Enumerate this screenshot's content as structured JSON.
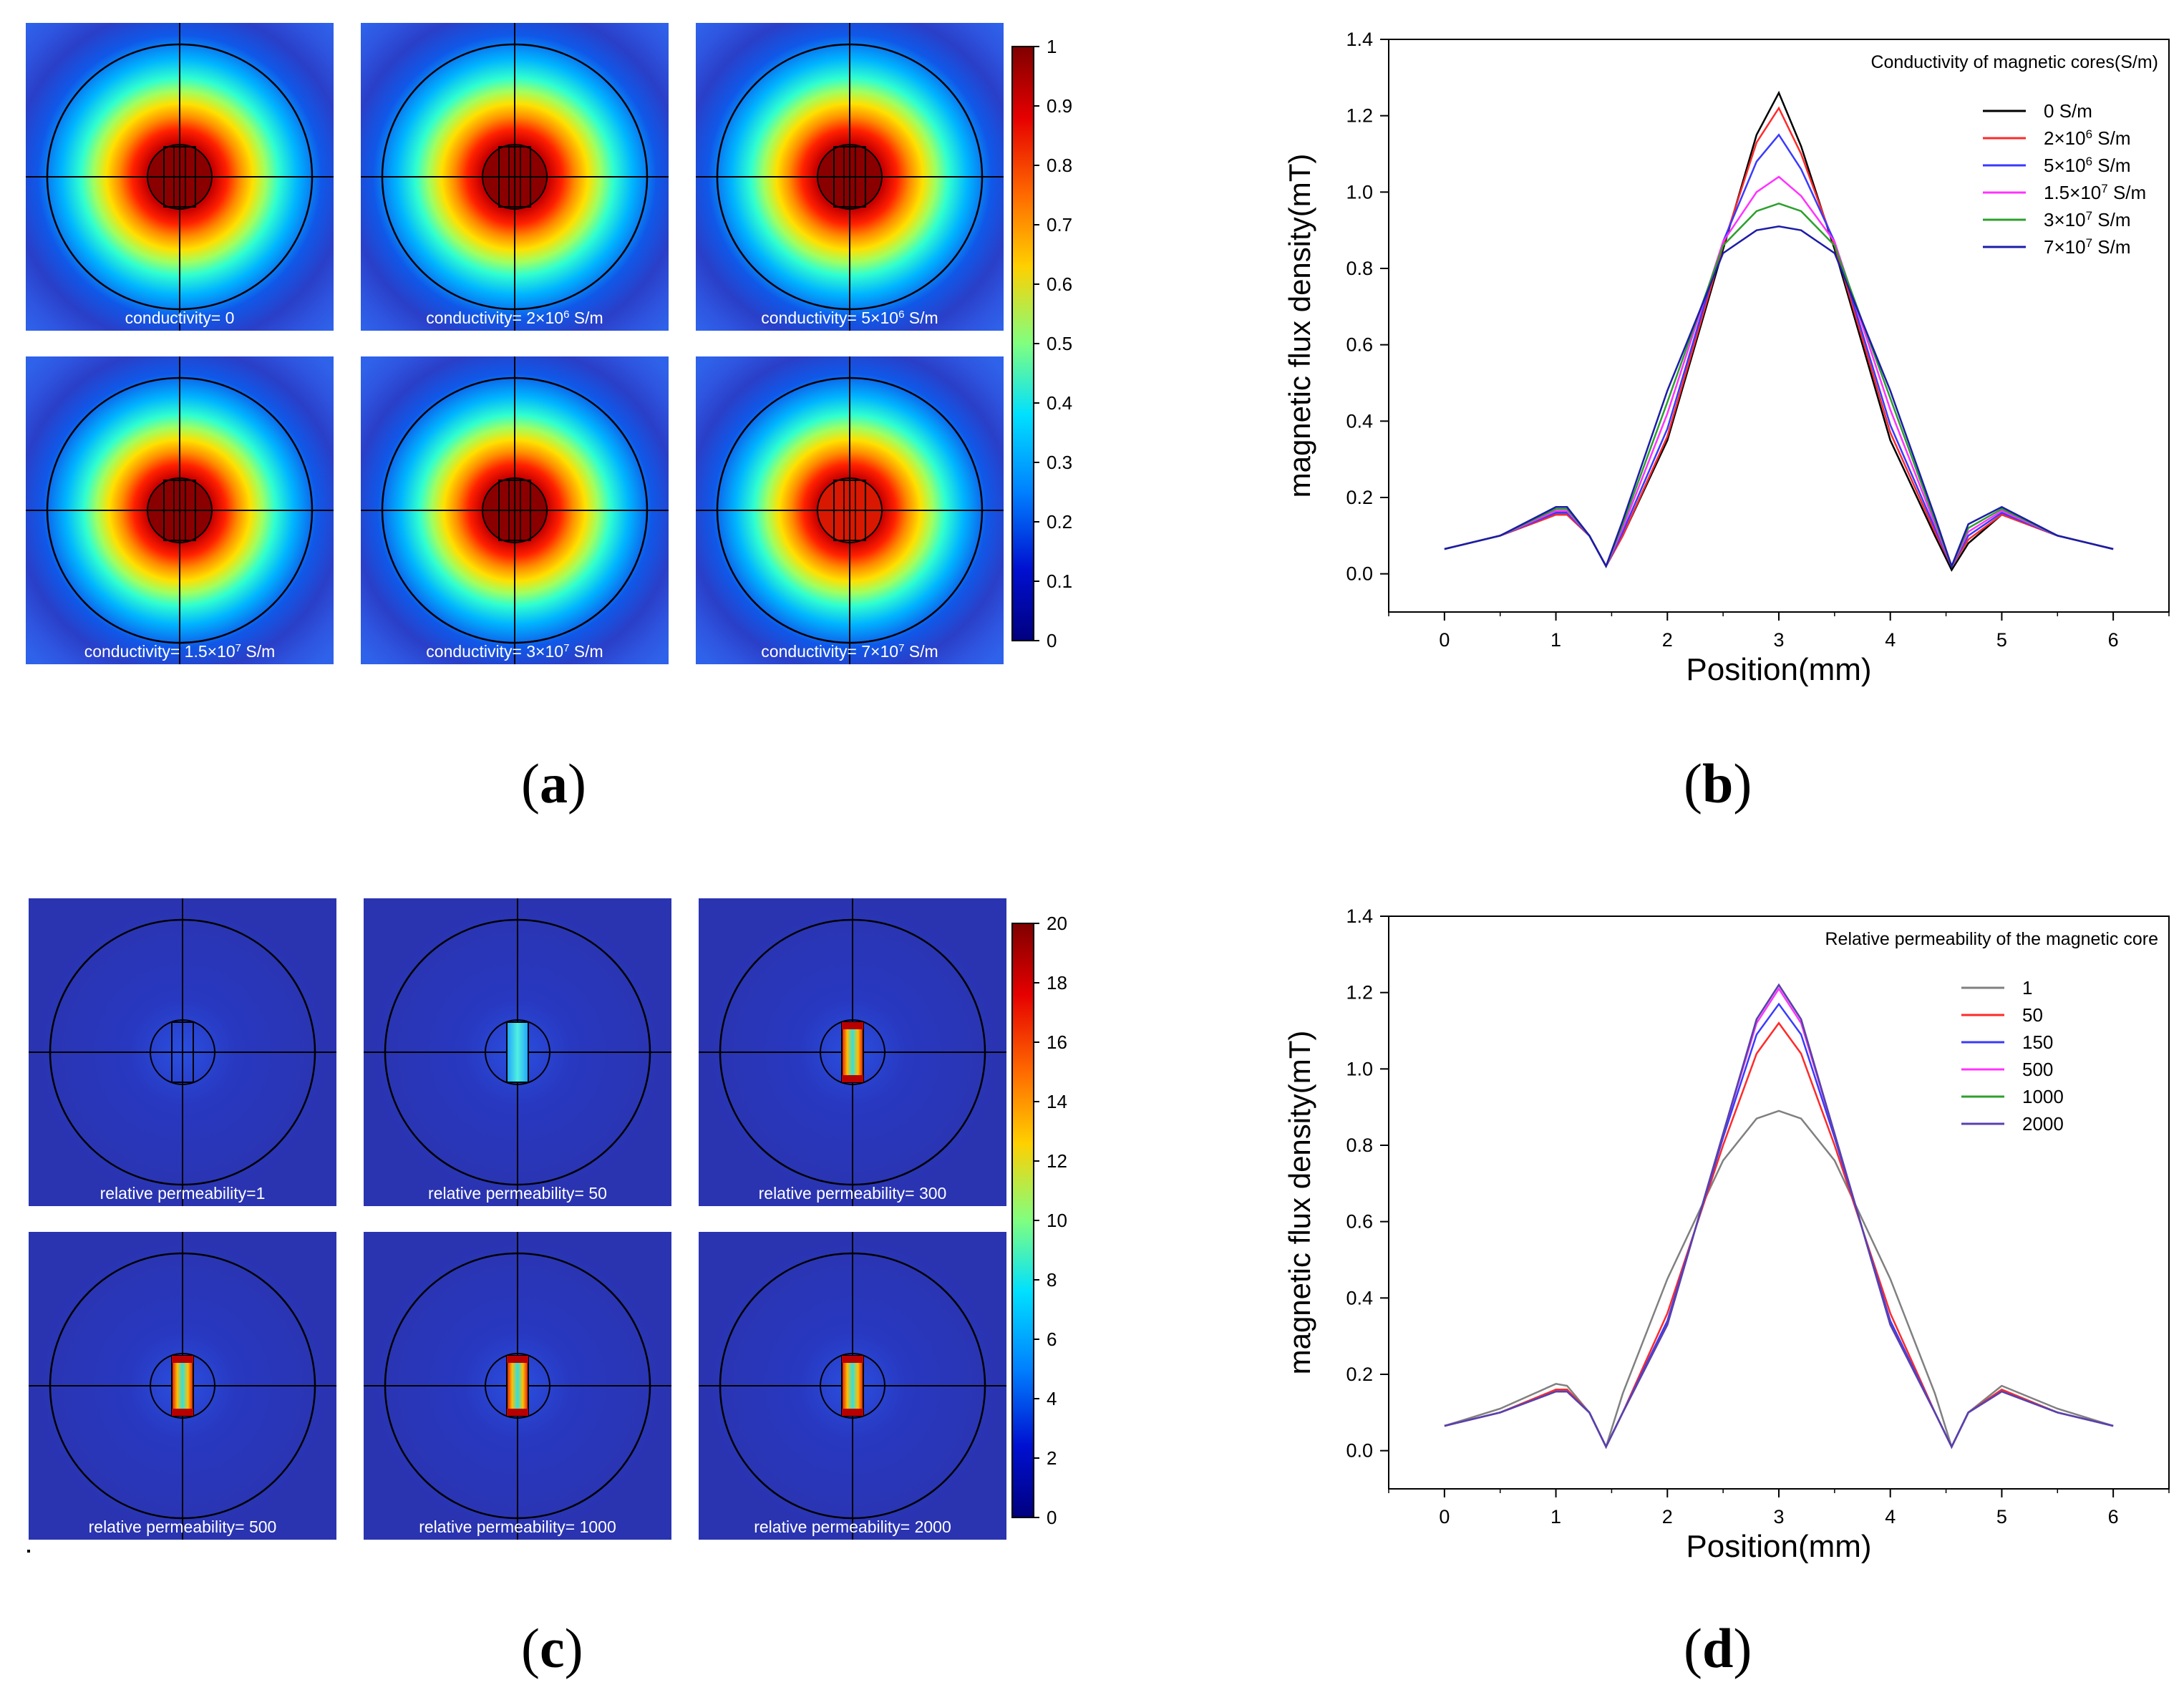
{
  "panels": {
    "a": {
      "letter": "a",
      "subplots": [
        {
          "label": "conductivity= 0"
        },
        {
          "label": "conductivity= 2×10",
          "sup": "6",
          "unit": " S/m"
        },
        {
          "label": "conductivity= 5×10",
          "sup": "6",
          "unit": " S/m"
        },
        {
          "label": "conductivity= 1.5×10",
          "sup": "7",
          "unit": " S/m"
        },
        {
          "label": "conductivity= 3×10",
          "sup": "7",
          "unit": " S/m"
        },
        {
          "label": "conductivity= 7×10",
          "sup": "7",
          "unit": " S/m"
        }
      ],
      "colorbar": {
        "ticks": [
          "1",
          "0.9",
          "0.8",
          "0.7",
          "0.6",
          "0.5",
          "0.4",
          "0.3",
          "0.2",
          "0.1",
          "0"
        ]
      }
    },
    "b": {
      "letter": "b"
    },
    "c": {
      "letter": "c",
      "subplots": [
        {
          "label": "relative permeability=1"
        },
        {
          "label": "relative permeability= 50"
        },
        {
          "label": "relative permeability= 300"
        },
        {
          "label": "relative permeability= 500"
        },
        {
          "label": "relative permeability= 1000"
        },
        {
          "label": "relative permeability= 2000"
        }
      ],
      "colorbar": {
        "ticks": [
          "20",
          "18",
          "16",
          "14",
          "12",
          "10",
          "8",
          "6",
          "4",
          "2",
          "0"
        ]
      }
    },
    "d": {
      "letter": "d"
    }
  },
  "chart_data": [
    {
      "id": "b",
      "type": "line",
      "title": "",
      "legend_title": "Conductivity of magnetic cores(S/m)",
      "xlabel": "Position(mm)",
      "ylabel": "magnetic flux density(mT)",
      "xlim": [
        -0.5,
        6.5
      ],
      "ylim": [
        -0.1,
        1.4
      ],
      "xticks": [
        "0",
        "1",
        "2",
        "3",
        "4",
        "5",
        "6"
      ],
      "yticks": [
        "0.0",
        "0.2",
        "0.4",
        "0.6",
        "0.8",
        "1.0",
        "1.2",
        "1.4"
      ],
      "legend": "top-right",
      "x": [
        0,
        0.5,
        1,
        1.1,
        1.3,
        1.45,
        1.6,
        2,
        2.5,
        2.8,
        3,
        3.2,
        3.5,
        4,
        4.4,
        4.55,
        4.7,
        5,
        5.5,
        6
      ],
      "series": [
        {
          "name": "0 S/m",
          "base": "0",
          "sup": "",
          "unit": " S/m",
          "color": "#000000",
          "values": [
            0.065,
            0.1,
            0.155,
            0.155,
            0.1,
            0.02,
            0.1,
            0.35,
            0.85,
            1.15,
            1.26,
            1.12,
            0.85,
            0.35,
            0.1,
            0.01,
            0.08,
            0.155,
            0.1,
            0.065
          ]
        },
        {
          "name": "2×10⁶ S/m",
          "base": "2×10",
          "sup": "6",
          "unit": " S/m",
          "color": "#ff2a2a",
          "values": [
            0.065,
            0.1,
            0.155,
            0.155,
            0.1,
            0.02,
            0.1,
            0.36,
            0.86,
            1.13,
            1.22,
            1.1,
            0.86,
            0.37,
            0.11,
            0.02,
            0.09,
            0.155,
            0.1,
            0.065
          ]
        },
        {
          "name": "5×10⁶ S/m",
          "base": "5×10",
          "sup": "6",
          "unit": " S/m",
          "color": "#3a3aff",
          "values": [
            0.065,
            0.1,
            0.16,
            0.16,
            0.1,
            0.02,
            0.11,
            0.38,
            0.87,
            1.08,
            1.15,
            1.06,
            0.87,
            0.39,
            0.12,
            0.02,
            0.1,
            0.16,
            0.1,
            0.065
          ]
        },
        {
          "name": "1.5×10⁷ S/m",
          "base": "1.5×10",
          "sup": "7",
          "unit": " S/m",
          "color": "#ff33ff",
          "values": [
            0.065,
            0.1,
            0.165,
            0.165,
            0.1,
            0.02,
            0.12,
            0.42,
            0.87,
            1.0,
            1.04,
            0.99,
            0.87,
            0.43,
            0.13,
            0.02,
            0.11,
            0.165,
            0.1,
            0.065
          ]
        },
        {
          "name": "3×10⁷ S/m",
          "base": "3×10",
          "sup": "7",
          "unit": " S/m",
          "color": "#2ca02c",
          "values": [
            0.065,
            0.1,
            0.17,
            0.17,
            0.1,
            0.02,
            0.13,
            0.45,
            0.86,
            0.95,
            0.97,
            0.95,
            0.86,
            0.46,
            0.14,
            0.02,
            0.12,
            0.17,
            0.1,
            0.065
          ]
        },
        {
          "name": "7×10⁷ S/m",
          "base": "7×10",
          "sup": "7",
          "unit": " S/m",
          "color": "#1c1ca8",
          "values": [
            0.065,
            0.1,
            0.175,
            0.175,
            0.1,
            0.02,
            0.14,
            0.48,
            0.84,
            0.9,
            0.91,
            0.9,
            0.84,
            0.48,
            0.15,
            0.02,
            0.13,
            0.175,
            0.1,
            0.065
          ]
        }
      ]
    },
    {
      "id": "d",
      "type": "line",
      "title": "",
      "legend_title": "Relative permeability of the magnetic core",
      "xlabel": "Position(mm)",
      "ylabel": "magnetic flux density(mT)",
      "xlim": [
        -0.5,
        6.5
      ],
      "ylim": [
        -0.1,
        1.4
      ],
      "xticks": [
        "0",
        "1",
        "2",
        "3",
        "4",
        "5",
        "6"
      ],
      "yticks": [
        "0.0",
        "0.2",
        "0.4",
        "0.6",
        "0.8",
        "1.0",
        "1.2",
        "1.4"
      ],
      "legend": "top-right",
      "x": [
        0,
        0.5,
        1,
        1.1,
        1.3,
        1.45,
        1.6,
        2,
        2.5,
        2.8,
        3,
        3.2,
        3.5,
        4,
        4.4,
        4.55,
        4.7,
        5,
        5.5,
        6
      ],
      "series": [
        {
          "name": "1",
          "color": "#808080",
          "values": [
            0.065,
            0.11,
            0.175,
            0.17,
            0.1,
            0.01,
            0.15,
            0.45,
            0.76,
            0.87,
            0.89,
            0.87,
            0.76,
            0.45,
            0.15,
            0.01,
            0.1,
            0.17,
            0.11,
            0.065
          ]
        },
        {
          "name": "50",
          "color": "#ff2a2a",
          "values": [
            0.065,
            0.1,
            0.16,
            0.16,
            0.1,
            0.01,
            0.1,
            0.36,
            0.8,
            1.04,
            1.12,
            1.04,
            0.8,
            0.36,
            0.1,
            0.01,
            0.1,
            0.16,
            0.1,
            0.065
          ]
        },
        {
          "name": "150",
          "color": "#3a3aff",
          "values": [
            0.065,
            0.1,
            0.155,
            0.155,
            0.1,
            0.01,
            0.1,
            0.34,
            0.82,
            1.09,
            1.17,
            1.09,
            0.82,
            0.34,
            0.1,
            0.01,
            0.1,
            0.155,
            0.1,
            0.065
          ]
        },
        {
          "name": "500",
          "color": "#ff33ff",
          "values": [
            0.065,
            0.1,
            0.155,
            0.155,
            0.1,
            0.01,
            0.1,
            0.33,
            0.83,
            1.12,
            1.21,
            1.12,
            0.83,
            0.33,
            0.1,
            0.01,
            0.1,
            0.155,
            0.1,
            0.065
          ]
        },
        {
          "name": "1000",
          "color": "#2ca02c",
          "values": [
            0.065,
            0.1,
            0.155,
            0.155,
            0.1,
            0.01,
            0.1,
            0.33,
            0.83,
            1.13,
            1.22,
            1.13,
            0.83,
            0.33,
            0.1,
            0.01,
            0.1,
            0.155,
            0.1,
            0.065
          ]
        },
        {
          "name": "2000",
          "color": "#5b3fb0",
          "values": [
            0.065,
            0.1,
            0.155,
            0.155,
            0.1,
            0.01,
            0.1,
            0.33,
            0.83,
            1.13,
            1.22,
            1.13,
            0.83,
            0.33,
            0.1,
            0.01,
            0.1,
            0.155,
            0.1,
            0.065
          ]
        }
      ]
    }
  ]
}
